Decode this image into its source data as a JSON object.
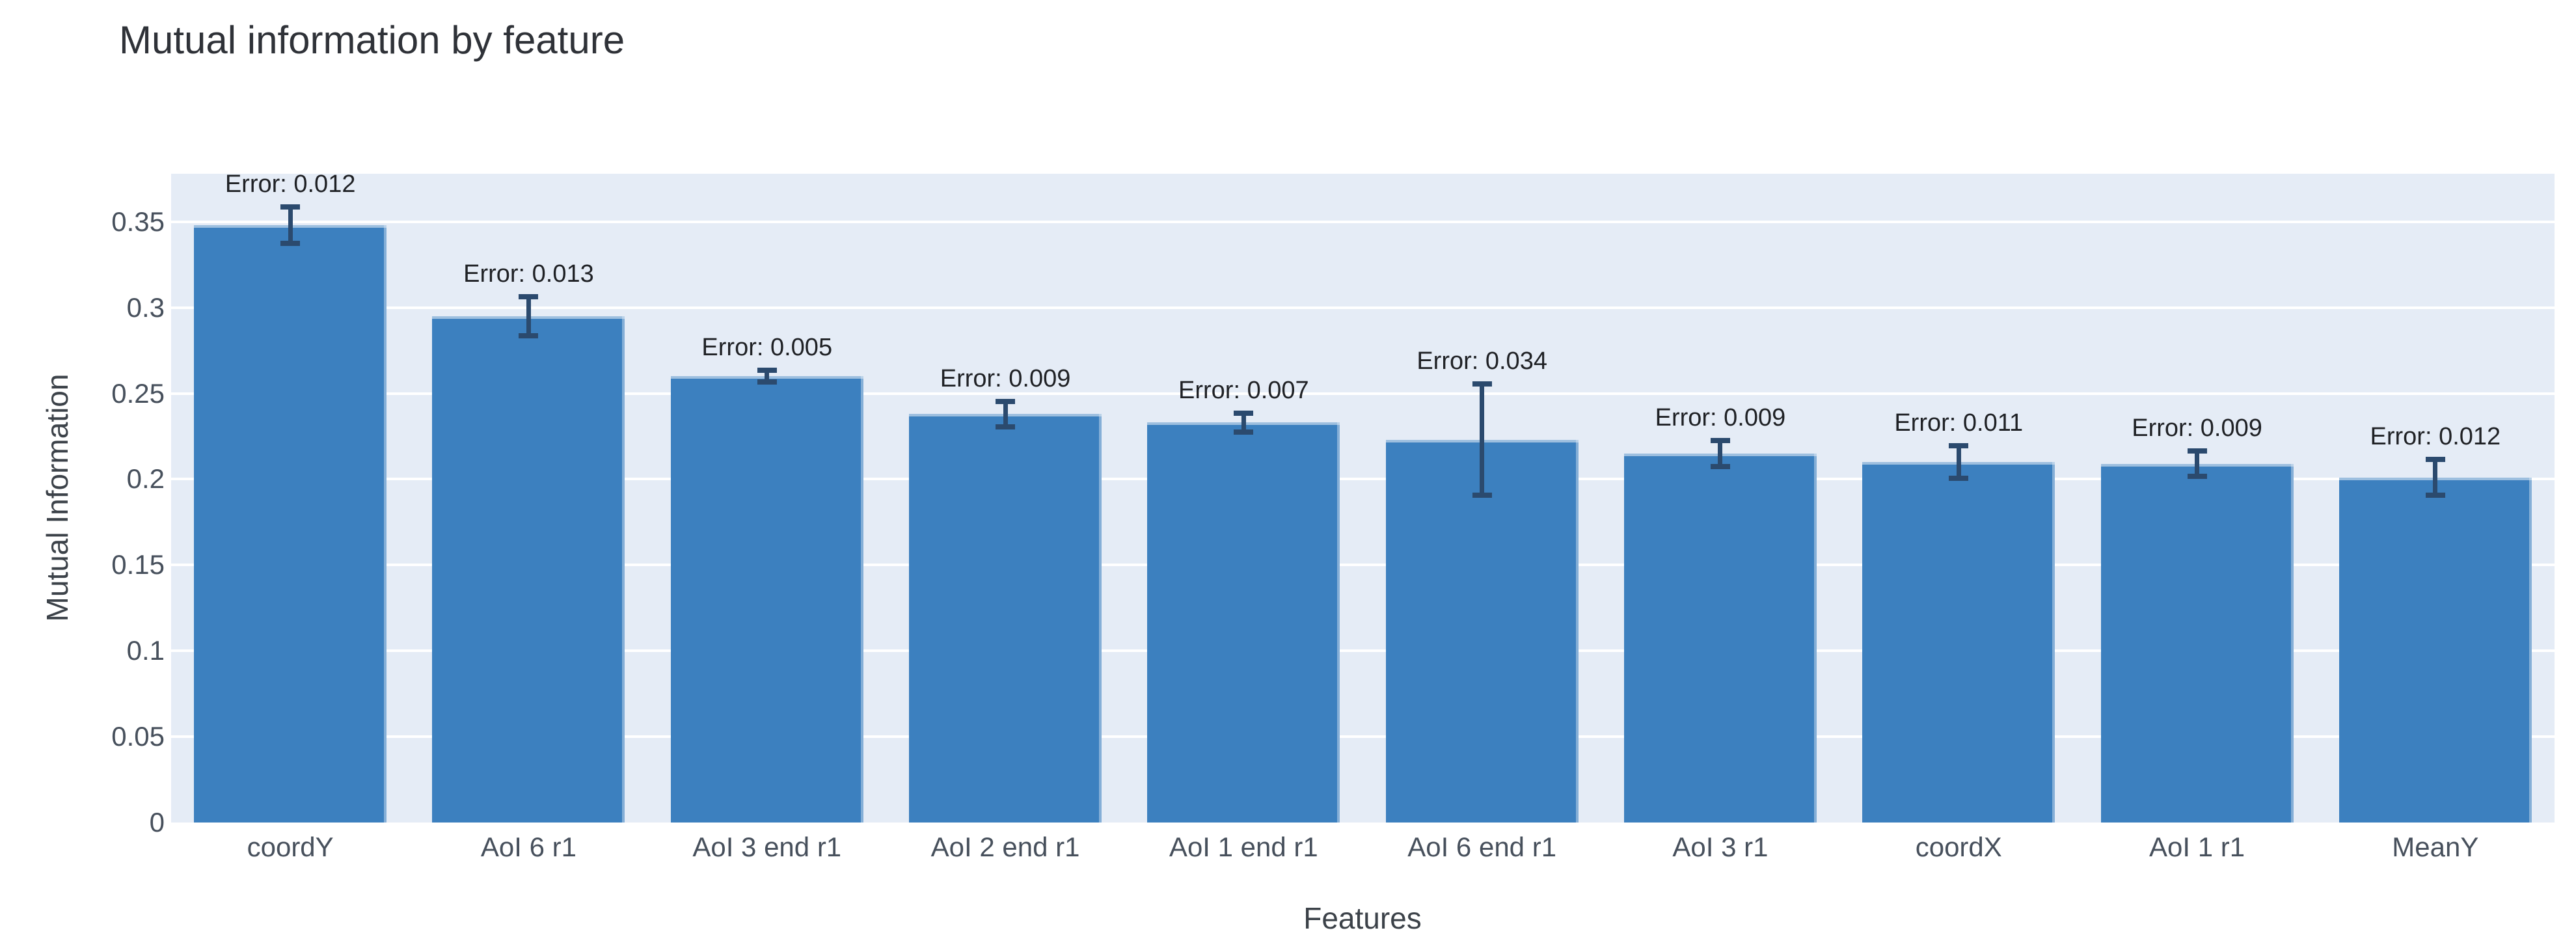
{
  "chart": {
    "title": "Mutual information by feature",
    "xlabel": "Features",
    "ylabel": "Mutual Information"
  },
  "chart_data": {
    "type": "bar",
    "title": "Mutual information by feature",
    "xlabel": "Features",
    "ylabel": "Mutual Information",
    "categories": [
      "coordY",
      "AoI 6 r1",
      "AoI 3 end r1",
      "AoI 2 end r1",
      "AoI 1 end r1",
      "AoI 6 end r1",
      "AoI 3 r1",
      "coordX",
      "AoI 1 r1",
      "MeanY"
    ],
    "values": [
      0.348,
      0.295,
      0.26,
      0.238,
      0.233,
      0.223,
      0.215,
      0.21,
      0.209,
      0.201
    ],
    "errors": [
      0.012,
      0.013,
      0.005,
      0.009,
      0.007,
      0.034,
      0.009,
      0.011,
      0.009,
      0.012
    ],
    "error_label_prefix": "Error: ",
    "ylim": [
      0,
      0.378
    ],
    "yticks": [
      0,
      0.05,
      0.1,
      0.15,
      0.2,
      0.25,
      0.3,
      0.35
    ],
    "grid": true,
    "legend": false,
    "colors": {
      "bar": "#3c80bf",
      "error_bar": "#2b4a6e",
      "plot_background": "#e5ecf6",
      "gridline": "#ffffff",
      "title_text": "#2f3238",
      "tick_text": "#47505c",
      "error_label_text": "#1f2125"
    }
  }
}
